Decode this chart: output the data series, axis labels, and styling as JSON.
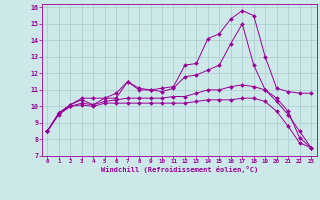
{
  "xlabel": "Windchill (Refroidissement éolien,°C)",
  "bg_color": "#cce8e8",
  "line_color": "#990099",
  "grid_color": "#aacccc",
  "xlim": [
    -0.5,
    23.5
  ],
  "ylim": [
    7,
    16.2
  ],
  "yticks": [
    7,
    8,
    9,
    10,
    11,
    12,
    13,
    14,
    15,
    16
  ],
  "xticks": [
    0,
    1,
    2,
    3,
    4,
    5,
    6,
    7,
    8,
    9,
    10,
    11,
    12,
    13,
    14,
    15,
    16,
    17,
    18,
    19,
    20,
    21,
    22,
    23
  ],
  "series": [
    [
      8.5,
      9.6,
      10.1,
      10.5,
      10.5,
      10.5,
      10.8,
      11.5,
      11.1,
      11.0,
      11.1,
      11.2,
      12.5,
      12.6,
      14.1,
      14.4,
      15.3,
      15.8,
      15.5,
      13.0,
      11.1,
      10.9,
      10.8,
      10.8
    ],
    [
      8.5,
      9.6,
      10.1,
      10.4,
      10.1,
      10.5,
      10.5,
      11.5,
      11.0,
      11.0,
      10.9,
      11.1,
      11.8,
      11.9,
      12.2,
      12.5,
      13.8,
      15.0,
      12.5,
      11.0,
      10.3,
      9.5,
      8.5,
      7.5
    ],
    [
      8.5,
      9.6,
      10.0,
      10.2,
      10.1,
      10.3,
      10.4,
      10.5,
      10.5,
      10.5,
      10.5,
      10.6,
      10.6,
      10.8,
      11.0,
      11.0,
      11.2,
      11.3,
      11.2,
      11.0,
      10.5,
      9.7,
      8.1,
      7.5
    ],
    [
      8.5,
      9.5,
      10.0,
      10.1,
      10.0,
      10.2,
      10.2,
      10.2,
      10.2,
      10.2,
      10.2,
      10.2,
      10.2,
      10.3,
      10.4,
      10.4,
      10.4,
      10.5,
      10.5,
      10.3,
      9.7,
      8.8,
      7.8,
      7.5
    ]
  ]
}
